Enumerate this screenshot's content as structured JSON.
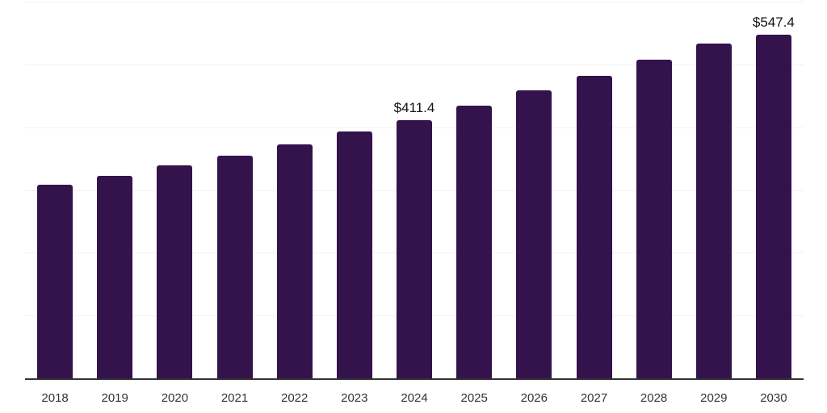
{
  "chart_data": {
    "type": "bar",
    "title": "",
    "xlabel": "",
    "ylabel": "",
    "categories": [
      "2018",
      "2019",
      "2020",
      "2021",
      "2022",
      "2023",
      "2024",
      "2025",
      "2026",
      "2027",
      "2028",
      "2029",
      "2030"
    ],
    "values": [
      309.0,
      322.2,
      339.3,
      355.1,
      372.7,
      393.2,
      411.4,
      434.6,
      458.1,
      481.6,
      507.3,
      533.3,
      547.4
    ],
    "data_labels": [
      {
        "index": 6,
        "text": "$411.4"
      },
      {
        "index": 12,
        "text": "$547.4"
      }
    ],
    "ylim": [
      0,
      600
    ],
    "gridline_interval": 100,
    "grid": true,
    "legend": "none",
    "colors": {
      "bar": "#34124c",
      "axis_line": "#333333",
      "gridline": "#f2f2f2",
      "tick_text": "#333333",
      "label_text": "#111111",
      "background": "#ffffff"
    }
  }
}
